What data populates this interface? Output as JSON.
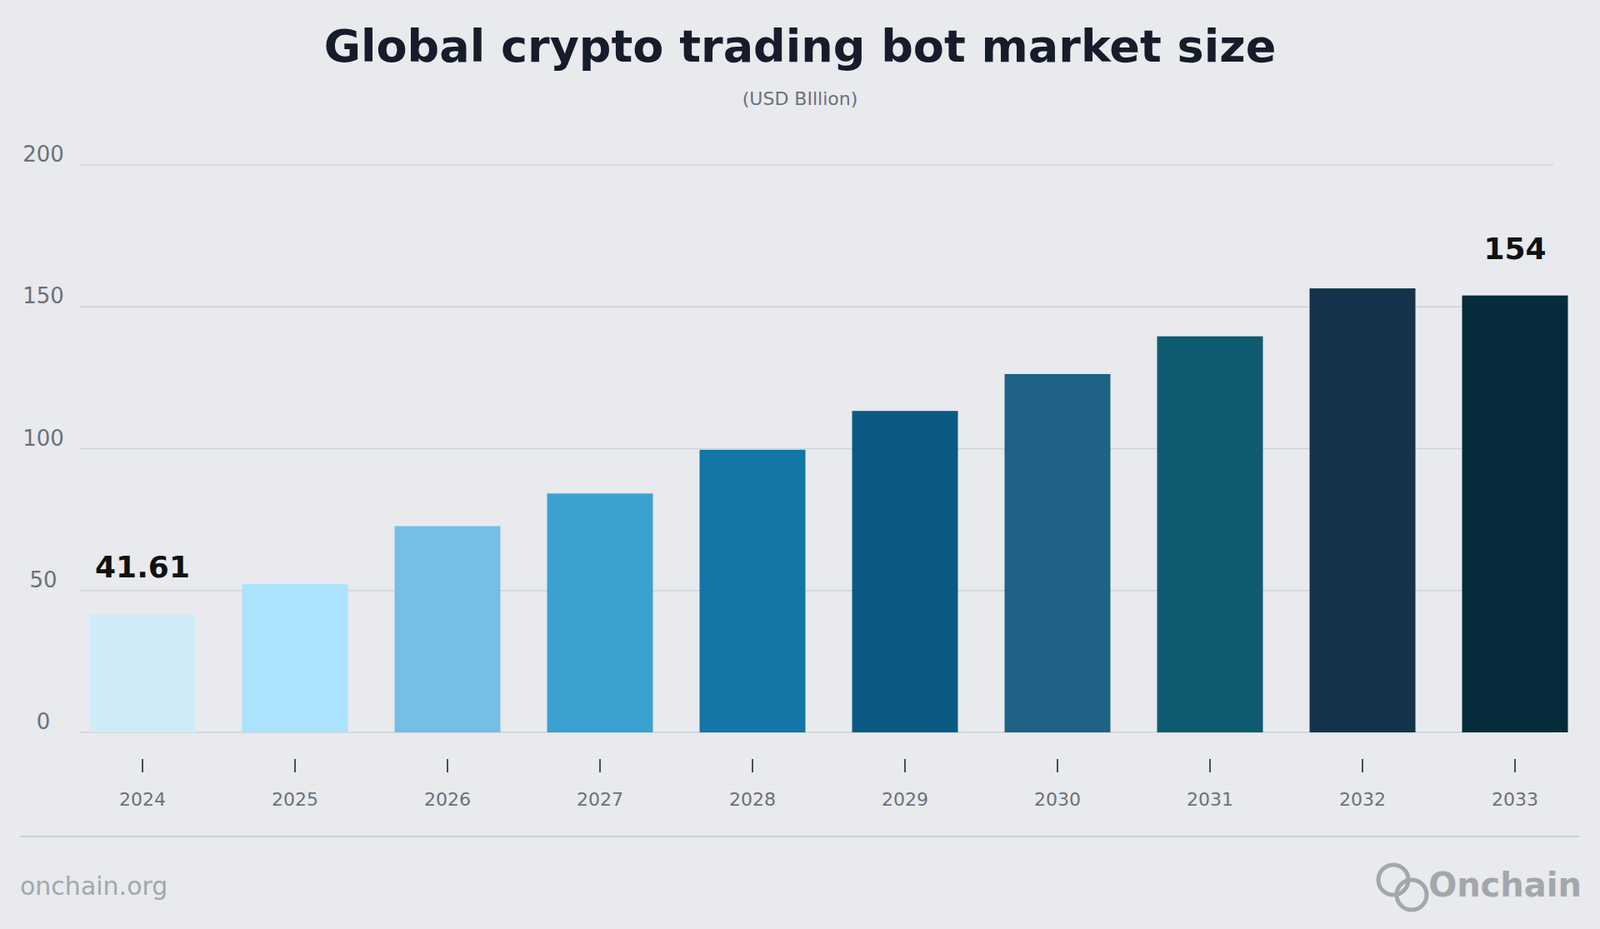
{
  "chart_data": {
    "type": "bar",
    "title": "Global crypto trading bot market size",
    "subtitle": "(USD BIllion)",
    "categories": [
      "2024",
      "2025",
      "2026",
      "2027",
      "2028",
      "2029",
      "2030",
      "2031",
      "2032",
      "2033"
    ],
    "values": [
      41.61,
      52.2,
      72.7,
      84.2,
      99.6,
      113.3,
      126.3,
      139.6,
      156.5,
      154
    ],
    "value_labels": [
      "41.61",
      null,
      null,
      null,
      null,
      null,
      null,
      null,
      null,
      "154"
    ],
    "colors": [
      "#d0ebf8",
      "#abe2fd",
      "#74bfe3",
      "#3ba1d0",
      "#1276a6",
      "#0a5a84",
      "#1e6285",
      "#0e5a70",
      "#13344a",
      "#062c3b"
    ],
    "ylim": [
      0,
      200
    ],
    "yticks": [
      0,
      50,
      100,
      150,
      200
    ],
    "grid": true,
    "source": "onchain.org",
    "brand": "Onchain"
  }
}
